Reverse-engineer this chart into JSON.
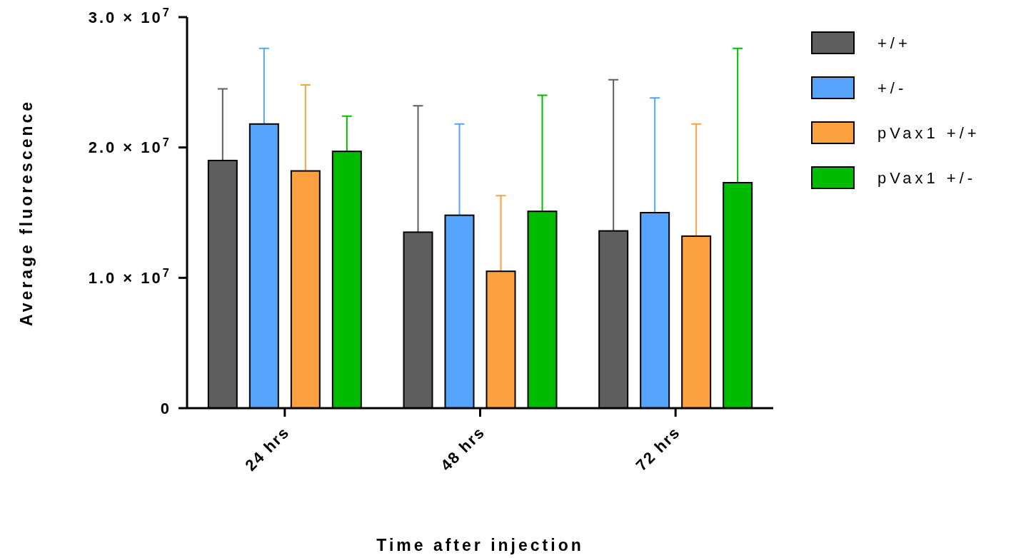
{
  "chart_data": {
    "type": "bar",
    "xlabel": "Time after injection",
    "ylabel": "Average fluorescence",
    "categories": [
      "24 hrs",
      "48 hrs",
      "72 hrs"
    ],
    "series": [
      {
        "name": "+/+",
        "color": "#5f5f5f",
        "values": [
          19000000,
          13500000,
          13600000
        ],
        "errors": [
          [
            19000000,
            24500000
          ],
          [
            13500000,
            23200000
          ],
          [
            13600000,
            25200000
          ]
        ]
      },
      {
        "name": "+/-",
        "color": "#56a3fc",
        "values": [
          21800000,
          14800000,
          15000000
        ],
        "errors": [
          [
            21800000,
            27600000
          ],
          [
            14800000,
            21800000
          ],
          [
            15000000,
            23800000
          ]
        ]
      },
      {
        "name": "pVax1 +/+",
        "color": "#fca13f",
        "values": [
          18200000,
          10500000,
          13200000
        ],
        "errors": [
          [
            18200000,
            24800000
          ],
          [
            10500000,
            16300000
          ],
          [
            13200000,
            21800000
          ]
        ]
      },
      {
        "name": "pVax1 +/-",
        "color": "#00bb00",
        "values": [
          19700000,
          15100000,
          17300000
        ],
        "errors": [
          [
            19700000,
            22400000
          ],
          [
            15100000,
            24000000
          ],
          [
            17300000,
            27600000
          ]
        ]
      }
    ],
    "ylim": [
      0,
      30000000
    ],
    "yticks": [
      {
        "value": 0,
        "label": "0"
      },
      {
        "value": 10000000,
        "label": "1.0 × 10$^{7}$"
      },
      {
        "value": 20000000,
        "label": "2.0 × 10$^{7}$"
      },
      {
        "value": 30000000,
        "label": "3.0 × 10$^{7}$"
      }
    ],
    "legend": "top right",
    "grid": false
  }
}
